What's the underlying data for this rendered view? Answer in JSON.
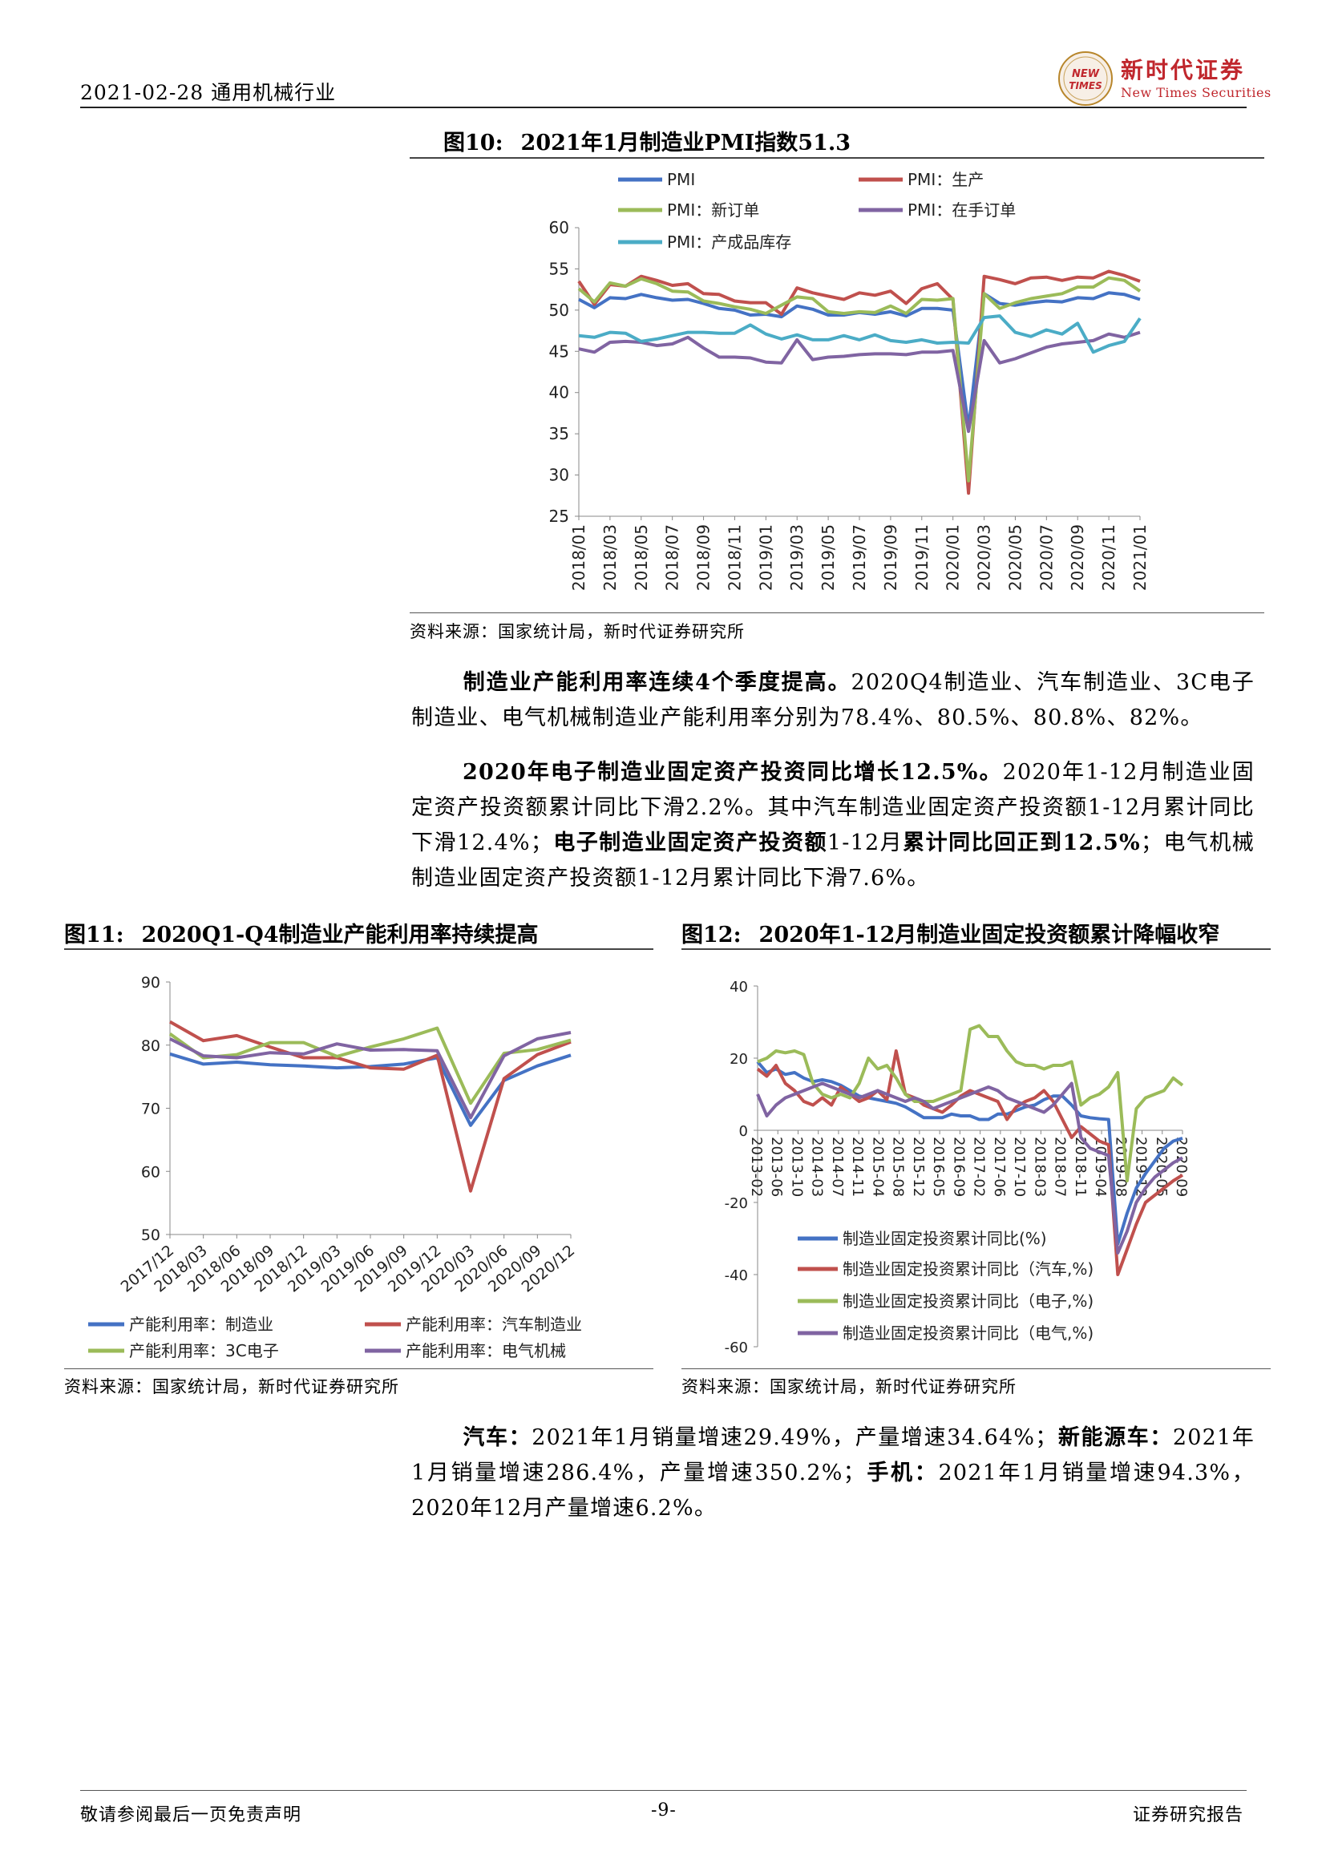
{
  "header": {
    "date_industry": "2021-02-28 通用机械行业",
    "logo_cn": "新时代证券",
    "logo_en": "New Times Securities",
    "logo_mark": "NEW TIMES"
  },
  "fig10": {
    "num": "图10:",
    "title": "2021年1月制造业PMI指数51.3",
    "source": "资料来源：国家统计局，新时代证券研究所"
  },
  "para1": {
    "bold": "制造业产能利用率连续4个季度提高。",
    "text": "2020Q4制造业、汽车制造业、3C电子制造业、电气机械制造业产能利用率分别为78.4%、80.5%、80.8%、82%。"
  },
  "para2": {
    "bold1": "2020年电子制造业固定资产投资同比增长12.5%。",
    "text1": "2020年1-12月制造业固定资产投资额累计同比下滑2.2%。其中汽车制造业固定资产投资额1-12月累计同比下滑12.4%；",
    "bold2": "电子制造业固定资产投资额",
    "text2": "1-12月",
    "bold3": "累计同比回正到12.5%",
    "text3": "；电气机械制造业固定资产投资额1-12月累计同比下滑7.6%。"
  },
  "fig11": {
    "num": "图11:",
    "title": "2020Q1-Q4制造业产能利用率持续提高",
    "source": "资料来源：国家统计局，新时代证券研究所"
  },
  "fig12": {
    "num": "图12:",
    "title": "2020年1-12月制造业固定投资额累计降幅收窄",
    "source": "资料来源：国家统计局，新时代证券研究所"
  },
  "para3": {
    "b1": "汽车：",
    "t1": "2021年1月销量增速29.49%，产量增速34.64%；",
    "b2": "新能源车：",
    "t2": "2021年1月销量增速286.4%，产量增速350.2%；",
    "b3": "手机：",
    "t3": "2021年1月销量增速94.3%，2020年12月产量增速6.2%。"
  },
  "footer": {
    "left": "敬请参阅最后一页免责声明",
    "center": "-9-",
    "right": "证券研究报告"
  },
  "chart_data": [
    {
      "type": "line",
      "ylim": [
        25,
        60
      ],
      "yticks": [
        25,
        30,
        35,
        40,
        45,
        50,
        55,
        60
      ],
      "x_tick_labels": [
        "2018/01",
        "2018/03",
        "2018/05",
        "2018/07",
        "2018/09",
        "2018/11",
        "2019/01",
        "2019/03",
        "2019/05",
        "2019/07",
        "2019/09",
        "2019/11",
        "2020/01",
        "2020/03",
        "2020/05",
        "2020/07",
        "2020/09",
        "2020/11",
        "2021/01"
      ],
      "legend_position": "top",
      "series": [
        {
          "name": "PMI",
          "color": "#4472C4",
          "values": [
            51.3,
            50.3,
            51.5,
            51.4,
            51.9,
            51.5,
            51.2,
            51.3,
            50.8,
            50.2,
            50.0,
            49.4,
            49.5,
            49.2,
            50.5,
            50.1,
            49.4,
            49.4,
            49.7,
            49.5,
            49.8,
            49.3,
            50.2,
            50.2,
            50.0,
            35.7,
            52.0,
            50.8,
            50.6,
            50.9,
            51.1,
            51.0,
            51.5,
            51.4,
            52.1,
            51.9,
            51.3
          ]
        },
        {
          "name": "PMI：生产",
          "color": "#C0504D",
          "values": [
            53.5,
            50.7,
            53.1,
            52.9,
            54.1,
            53.6,
            53.0,
            53.2,
            52.0,
            51.9,
            51.1,
            50.9,
            50.9,
            49.5,
            52.7,
            52.1,
            51.7,
            51.3,
            52.1,
            51.8,
            52.3,
            50.8,
            52.6,
            53.2,
            51.3,
            27.8,
            54.1,
            53.7,
            53.2,
            53.9,
            54.0,
            53.6,
            54.0,
            53.9,
            54.7,
            54.2,
            53.5
          ]
        },
        {
          "name": "PMI：新订单",
          "color": "#9BBB59",
          "values": [
            52.6,
            51.0,
            53.3,
            52.9,
            53.8,
            53.2,
            52.3,
            52.2,
            51.1,
            50.8,
            50.4,
            50.1,
            49.6,
            50.6,
            51.6,
            51.4,
            49.8,
            49.6,
            49.8,
            49.7,
            50.5,
            49.6,
            51.3,
            51.2,
            51.4,
            29.3,
            52.0,
            50.2,
            50.9,
            51.4,
            51.7,
            52.0,
            52.8,
            52.8,
            53.9,
            53.6,
            52.3
          ]
        },
        {
          "name": "PMI：在手订单",
          "color": "#8064A2",
          "values": [
            45.3,
            44.9,
            46.1,
            46.2,
            46.1,
            45.7,
            45.9,
            46.7,
            45.4,
            44.3,
            44.3,
            44.2,
            43.7,
            43.6,
            46.4,
            44.0,
            44.3,
            44.4,
            44.6,
            44.7,
            44.7,
            44.6,
            44.9,
            44.9,
            45.1,
            35.3,
            46.3,
            43.6,
            44.1,
            44.8,
            45.5,
            45.9,
            46.1,
            46.3,
            47.1,
            46.7,
            47.3
          ]
        },
        {
          "name": "PMI：产成品库存",
          "color": "#4BACC6",
          "values": [
            46.9,
            46.7,
            47.3,
            47.2,
            46.2,
            46.5,
            46.9,
            47.3,
            47.3,
            47.2,
            47.2,
            48.2,
            47.1,
            46.5,
            47.0,
            46.4,
            46.4,
            46.9,
            46.4,
            47.0,
            46.3,
            46.1,
            46.4,
            46.0,
            46.1,
            46.0,
            49.1,
            49.3,
            47.3,
            46.8,
            47.6,
            47.1,
            48.4,
            44.9,
            45.7,
            46.2,
            49.0
          ]
        }
      ]
    },
    {
      "type": "line",
      "ylim": [
        50,
        90
      ],
      "yticks": [
        50,
        60,
        70,
        80,
        90
      ],
      "categories": [
        "2017/12",
        "2018/03",
        "2018/06",
        "2018/09",
        "2018/12",
        "2019/03",
        "2019/06",
        "2019/09",
        "2019/12",
        "2020/03",
        "2020/06",
        "2020/09",
        "2020/12"
      ],
      "legend_position": "bottom",
      "series": [
        {
          "name": "产能利用率：制造业",
          "color": "#4472C4",
          "values": [
            78.6,
            77.0,
            77.3,
            76.9,
            76.7,
            76.4,
            76.6,
            77.0,
            78.0,
            67.3,
            74.4,
            76.7,
            78.4
          ]
        },
        {
          "name": "产能利用率：汽车制造业",
          "color": "#C0504D",
          "values": [
            83.7,
            80.7,
            81.5,
            79.7,
            78.0,
            78.0,
            76.4,
            76.2,
            78.4,
            56.9,
            74.7,
            78.5,
            80.5
          ]
        },
        {
          "name": "产能利用率：3C电子",
          "color": "#9BBB59",
          "values": [
            81.8,
            78.0,
            78.5,
            80.4,
            80.4,
            78.2,
            79.7,
            81.0,
            82.7,
            70.8,
            78.7,
            79.3,
            80.8
          ]
        },
        {
          "name": "产能利用率：电气机械",
          "color": "#8064A2",
          "values": [
            81.0,
            78.3,
            78.0,
            78.8,
            78.6,
            80.2,
            79.2,
            79.3,
            79.1,
            68.5,
            78.3,
            81.0,
            82.0
          ]
        }
      ]
    },
    {
      "type": "line",
      "ylim": [
        -60,
        40
      ],
      "yticks": [
        -60,
        -40,
        -20,
        0,
        20,
        40
      ],
      "x_tick_labels": [
        "2013-02",
        "2013-06",
        "2013-10",
        "2014-03",
        "2014-07",
        "2014-11",
        "2015-04",
        "2015-08",
        "2015-12",
        "2016-05",
        "2016-09",
        "2017-02",
        "2017-06",
        "2017-10",
        "2018-03",
        "2018-07",
        "2018-11",
        "2019-04",
        "2019-08",
        "2019-12",
        "2020-05",
        "2020-09"
      ],
      "legend_position": "bottom",
      "series": [
        {
          "name": "制造业固定投资累计同比(%)",
          "color": "#4472C4",
          "values": [
            19,
            16,
            17,
            15.5,
            16,
            14.5,
            13.5,
            14,
            13.5,
            12.5,
            11,
            9.5,
            9,
            8.5,
            8,
            7.5,
            6.5,
            5,
            3.5,
            3.5,
            3.5,
            4.5,
            4,
            4,
            3,
            3,
            4.5,
            4.5,
            5.5,
            6.5,
            7,
            8.5,
            9.5,
            9.5,
            7,
            4,
            3.5,
            3.2,
            3,
            -31.5,
            -23,
            -16,
            -12,
            -8.5,
            -5,
            -3,
            -2.2
          ]
        },
        {
          "name": "制造业固定投资累计同比（汽车,%)",
          "color": "#C0504D",
          "values": [
            17,
            15,
            18,
            13,
            11,
            8,
            7,
            9,
            7,
            12,
            10,
            8,
            9,
            11,
            8.5,
            22,
            10,
            9,
            7,
            6,
            5,
            7,
            9.5,
            11,
            10,
            9,
            8,
            3,
            6.5,
            8,
            9,
            11,
            8,
            3,
            -2,
            1,
            -1,
            -3,
            -4,
            -40,
            -33,
            -26,
            -20,
            -18,
            -16,
            -14,
            -12.4
          ]
        },
        {
          "name": "制造业固定投资累计同比（电子,%)",
          "color": "#9BBB59",
          "values": [
            19,
            20,
            22,
            21.5,
            22,
            21,
            13,
            10,
            9,
            10,
            9,
            13,
            20,
            17,
            18,
            14.5,
            10,
            8,
            8,
            8,
            9,
            10,
            11,
            28,
            29,
            26,
            26,
            22,
            19,
            18,
            18,
            17,
            18,
            18,
            19,
            7,
            9,
            10,
            12,
            16,
            -14,
            6,
            9,
            10,
            11,
            14.5,
            12.5
          ]
        },
        {
          "name": "制造业固定投资累计同比（电气,%)",
          "color": "#8064A2",
          "values": [
            10,
            4,
            7,
            9,
            10,
            11,
            12,
            13,
            12,
            11,
            10,
            9,
            10,
            11,
            10,
            9,
            8,
            9,
            8,
            6,
            7,
            8,
            9,
            10,
            11,
            12,
            11,
            9,
            8,
            7,
            6,
            5,
            7,
            10,
            13,
            -2,
            -5,
            -6,
            -7,
            -34,
            -28,
            -20,
            -16,
            -13,
            -11,
            -9,
            -7.6
          ]
        }
      ]
    }
  ]
}
